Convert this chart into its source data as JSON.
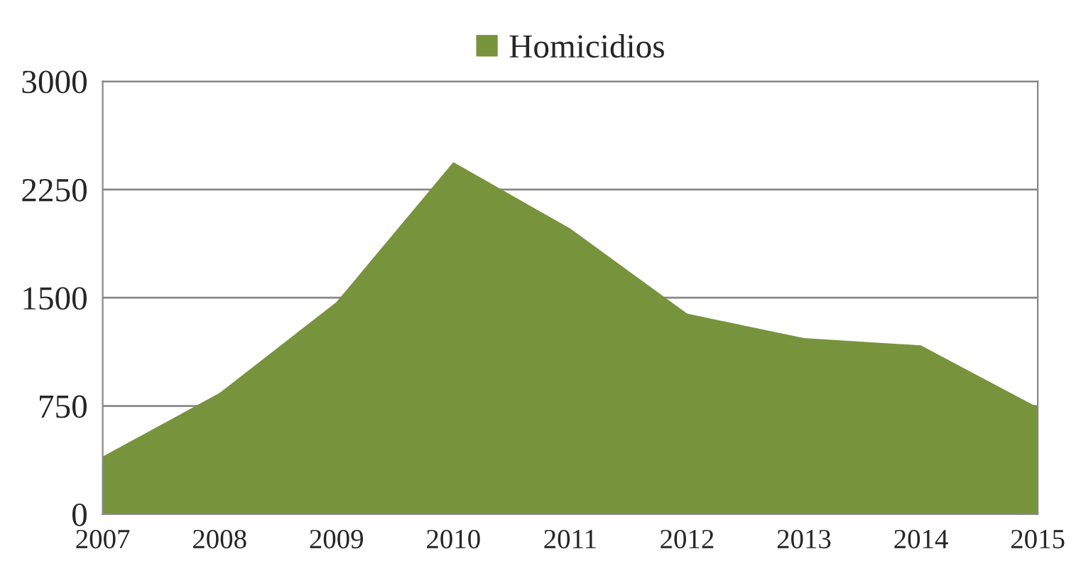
{
  "chart_data": {
    "type": "area",
    "x": [
      2007,
      2008,
      2009,
      2010,
      2011,
      2012,
      2013,
      2014,
      2015
    ],
    "series": [
      {
        "name": "Homicidios",
        "color": "#77933c",
        "values": [
          400,
          840,
          1470,
          2440,
          1980,
          1390,
          1220,
          1170,
          740
        ]
      }
    ],
    "xlim": [
      2007,
      2015
    ],
    "xticks": [
      2007,
      2008,
      2009,
      2010,
      2011,
      2012,
      2013,
      2014,
      2015
    ],
    "ylim": [
      0,
      3000
    ],
    "yticks": [
      0,
      750,
      1500,
      2250,
      3000
    ],
    "grid": "y",
    "legend": "top"
  }
}
